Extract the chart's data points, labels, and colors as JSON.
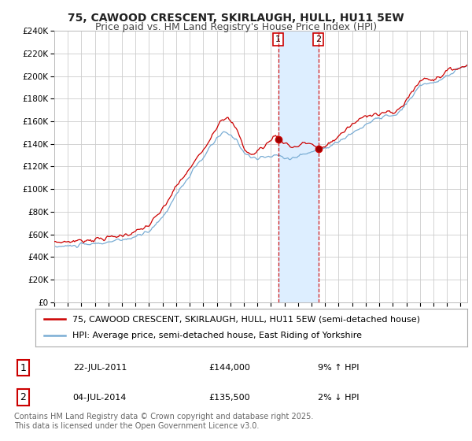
{
  "title": "75, CAWOOD CRESCENT, SKIRLAUGH, HULL, HU11 5EW",
  "subtitle": "Price paid vs. HM Land Registry's House Price Index (HPI)",
  "ylim": [
    0,
    240000
  ],
  "yticks": [
    0,
    20000,
    40000,
    60000,
    80000,
    100000,
    120000,
    140000,
    160000,
    180000,
    200000,
    220000,
    240000
  ],
  "xlim_start": 1995.0,
  "xlim_end": 2025.5,
  "legend_entry1": "75, CAWOOD CRESCENT, SKIRLAUGH, HULL, HU11 5EW (semi-detached house)",
  "legend_entry2": "HPI: Average price, semi-detached house, East Riding of Yorkshire",
  "sale1_date": "22-JUL-2011",
  "sale1_price": "£144,000",
  "sale1_hpi": "9% ↑ HPI",
  "sale1_year": 2011.54,
  "sale1_price_val": 144000,
  "sale2_date": "04-JUL-2014",
  "sale2_price": "£135,500",
  "sale2_hpi": "2% ↓ HPI",
  "sale2_year": 2014.5,
  "sale2_price_val": 135500,
  "footer": "Contains HM Land Registry data © Crown copyright and database right 2025.\nThis data is licensed under the Open Government Licence v3.0.",
  "line_color_red": "#cc0000",
  "line_color_blue": "#7aadd4",
  "shade_color": "#ddeeff",
  "vline_color": "#cc0000",
  "background_color": "#ffffff",
  "grid_color": "#cccccc",
  "title_fontsize": 10,
  "subtitle_fontsize": 9,
  "tick_fontsize": 7.5,
  "legend_fontsize": 8,
  "annotation_fontsize": 8,
  "footer_fontsize": 7
}
